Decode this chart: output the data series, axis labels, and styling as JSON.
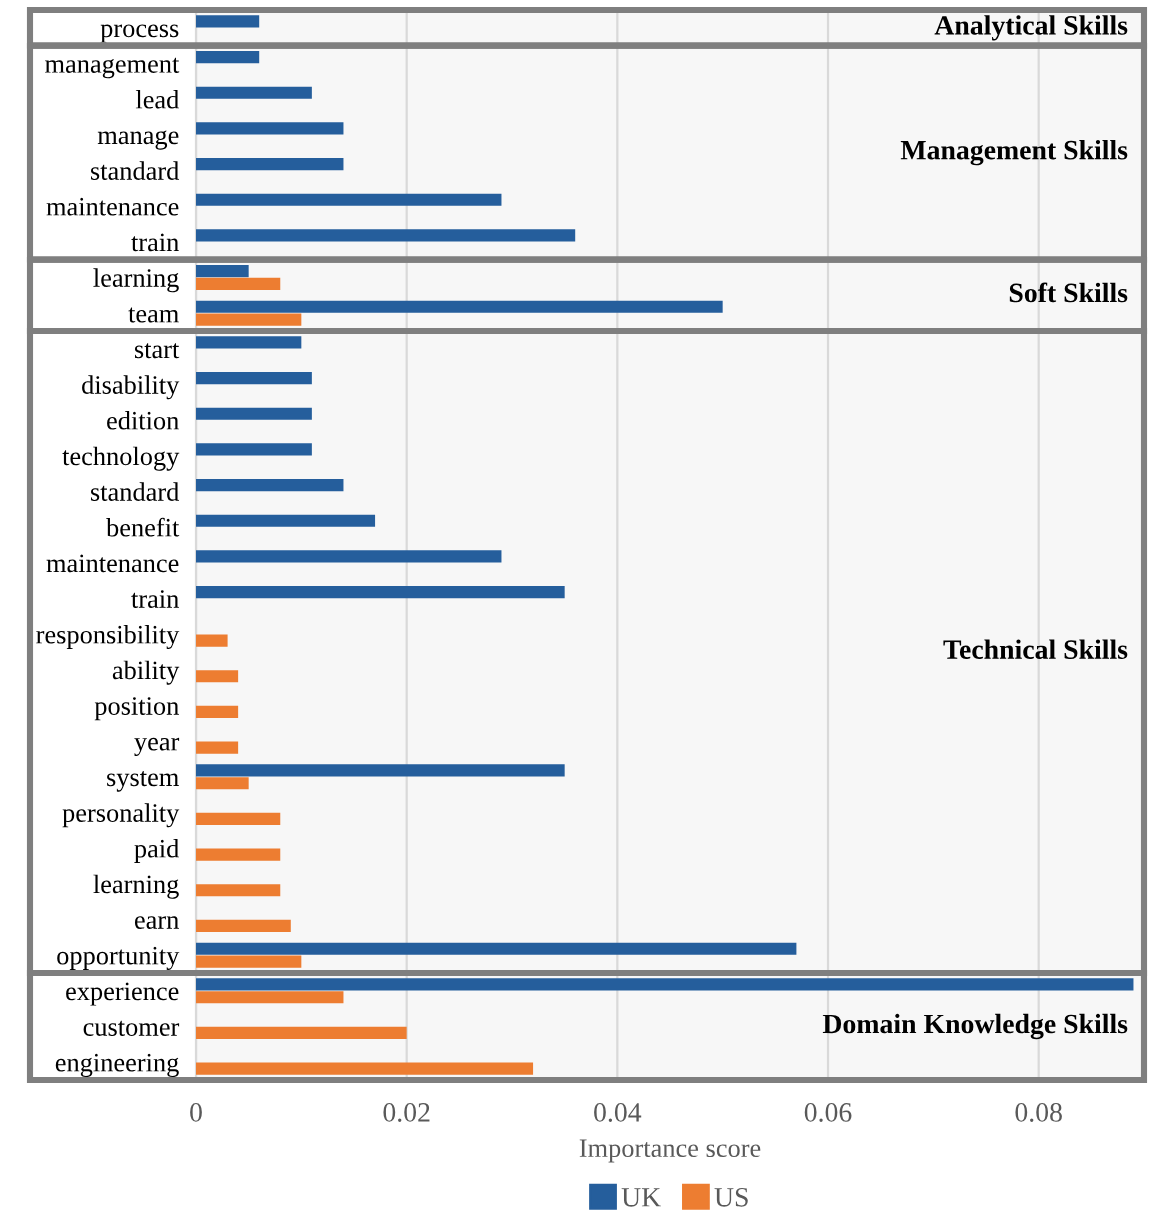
{
  "chart_data": {
    "type": "bar",
    "orientation": "horizontal",
    "categories": [
      "process",
      "management",
      "lead",
      "manage",
      "standard",
      "maintenance",
      "train",
      "learning",
      "team",
      "start",
      "disability",
      "edition",
      "technology",
      "standard",
      "benefit",
      "maintenance",
      "train",
      "responsibility",
      "ability",
      "position",
      "year",
      "system",
      "personality",
      "paid",
      "learning",
      "earn",
      "opportunity",
      "experience",
      "customer",
      "engineering"
    ],
    "series": [
      {
        "name": "UK",
        "color": "#255e9c",
        "values": [
          0.006,
          0.006,
          0.011,
          0.014,
          0.014,
          0.029,
          0.036,
          0.005,
          0.05,
          0.01,
          0.011,
          0.011,
          0.011,
          0.014,
          0.017,
          0.029,
          0.035,
          null,
          null,
          null,
          null,
          0.035,
          null,
          null,
          null,
          null,
          0.057,
          0.089,
          null,
          null
        ]
      },
      {
        "name": "US",
        "color": "#ed7d31",
        "values": [
          null,
          null,
          null,
          null,
          null,
          null,
          null,
          0.008,
          0.01,
          null,
          null,
          null,
          null,
          null,
          null,
          null,
          null,
          0.003,
          0.004,
          0.004,
          0.004,
          0.005,
          0.008,
          0.008,
          0.008,
          0.009,
          0.01,
          0.014,
          0.02,
          0.032
        ]
      }
    ],
    "xlabel": "Importance score",
    "xlim": [
      0,
      0.09
    ],
    "xticks": [
      0,
      0.02,
      0.04,
      0.06,
      0.08
    ],
    "grid": "x",
    "legend": "bottom",
    "bands": [
      {
        "axis": "y",
        "from": "process",
        "to": "process",
        "label": "Analytical Skills",
        "color": "#7f7f7f"
      },
      {
        "axis": "y",
        "from": "management",
        "to": "train",
        "label": "Management Skills",
        "color": "#7f7f7f"
      },
      {
        "axis": "y",
        "from": "learning",
        "to": "team",
        "label": "Soft Skills",
        "color": "#7f7f7f"
      },
      {
        "axis": "y",
        "from": "start",
        "to": "opportunity",
        "label": "Technical Skills",
        "color": "#7f7f7f"
      },
      {
        "axis": "y",
        "from": "experience",
        "to": "engineering",
        "label": "Domain Knowledge Skills",
        "color": "#7f7f7f"
      }
    ]
  }
}
